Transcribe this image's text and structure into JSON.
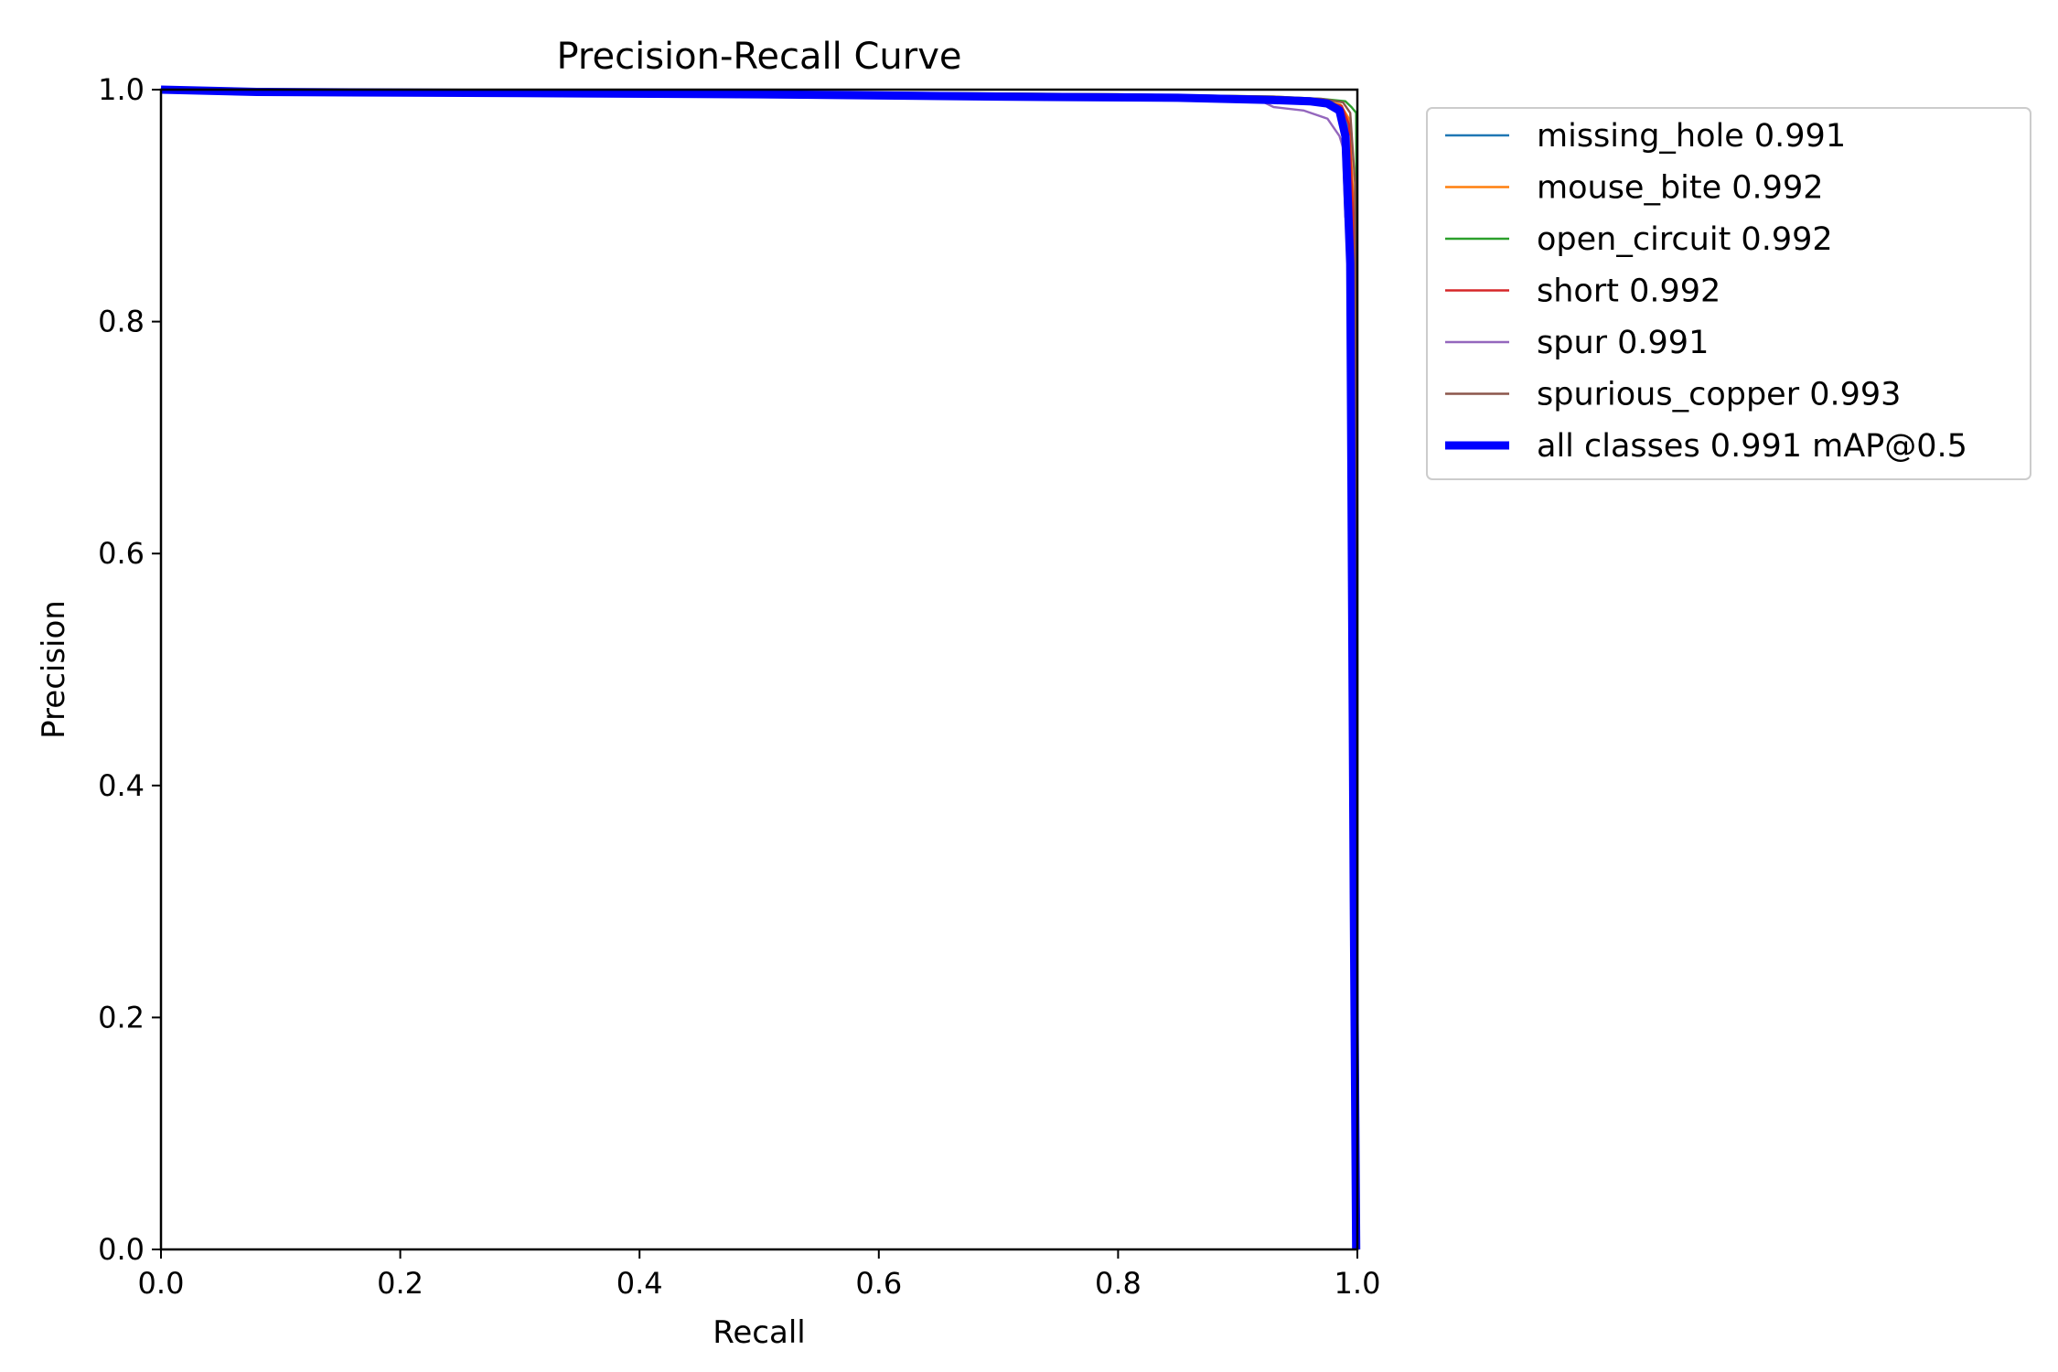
{
  "chart_data": {
    "type": "line",
    "title": "Precision-Recall Curve",
    "xlabel": "Recall",
    "ylabel": "Precision",
    "xlim": [
      0.0,
      1.0
    ],
    "ylim": [
      0.0,
      1.0
    ],
    "xticks": [
      "0.0",
      "0.2",
      "0.4",
      "0.6",
      "0.8",
      "1.0"
    ],
    "yticks": [
      "0.0",
      "0.2",
      "0.4",
      "0.6",
      "0.8",
      "1.0"
    ],
    "grid": false,
    "legend_position": "outside-upper-right",
    "series": [
      {
        "name": "missing_hole 0.991",
        "color": "#1f77b4",
        "x": [
          0.0,
          0.2,
          0.5,
          0.8,
          0.93,
          0.97,
          0.985,
          0.992,
          0.996,
          0.998,
          0.999
        ],
        "y": [
          1.0,
          0.999,
          0.997,
          0.994,
          0.992,
          0.99,
          0.985,
          0.97,
          0.9,
          0.5,
          0.0
        ]
      },
      {
        "name": "mouse_bite 0.992",
        "color": "#ff7f0e",
        "x": [
          0.0,
          0.2,
          0.5,
          0.8,
          0.93,
          0.97,
          0.986,
          0.993,
          0.997,
          0.999,
          1.0
        ],
        "y": [
          1.0,
          0.999,
          0.997,
          0.995,
          0.993,
          0.991,
          0.987,
          0.975,
          0.9,
          0.4,
          0.0
        ]
      },
      {
        "name": "open_circuit 0.992",
        "color": "#2ca02c",
        "x": [
          0.0,
          0.2,
          0.5,
          0.8,
          0.93,
          0.97,
          0.99,
          0.995,
          0.999,
          1.0,
          1.0
        ],
        "y": [
          1.0,
          0.999,
          0.998,
          0.996,
          0.994,
          0.992,
          0.99,
          0.985,
          0.98,
          0.6,
          0.0
        ]
      },
      {
        "name": "short 0.992",
        "color": "#d62728",
        "x": [
          0.0,
          0.2,
          0.5,
          0.8,
          0.93,
          0.97,
          0.987,
          0.993,
          0.997,
          0.999,
          1.0
        ],
        "y": [
          1.0,
          0.999,
          0.997,
          0.995,
          0.993,
          0.99,
          0.986,
          0.97,
          0.88,
          0.35,
          0.0
        ]
      },
      {
        "name": "spur 0.991",
        "color": "#9467bd",
        "x": [
          0.0,
          0.2,
          0.5,
          0.8,
          0.92,
          0.93,
          0.955,
          0.975,
          0.985,
          0.988,
          0.99,
          0.993,
          0.996,
          0.998
        ],
        "y": [
          1.0,
          0.999,
          0.997,
          0.993,
          0.99,
          0.985,
          0.982,
          0.975,
          0.96,
          0.95,
          0.89,
          0.96,
          0.6,
          0.0
        ]
      },
      {
        "name": "spurious_copper 0.993",
        "color": "#8c564b",
        "x": [
          0.0,
          0.2,
          0.5,
          0.8,
          0.93,
          0.97,
          0.988,
          0.994,
          0.998,
          1.0,
          1.0
        ],
        "y": [
          1.0,
          0.999,
          0.998,
          0.996,
          0.994,
          0.992,
          0.989,
          0.98,
          0.92,
          0.5,
          0.0
        ]
      },
      {
        "name": "all classes 0.991 mAP@0.5",
        "color": "#0000ff",
        "x": [
          0.0,
          0.08,
          0.3,
          0.5,
          0.7,
          0.85,
          0.93,
          0.96,
          0.975,
          0.985,
          0.99,
          0.994,
          0.997,
          0.999
        ],
        "y": [
          1.0,
          0.998,
          0.997,
          0.996,
          0.994,
          0.993,
          0.991,
          0.99,
          0.988,
          0.982,
          0.96,
          0.85,
          0.3,
          0.0
        ]
      }
    ]
  }
}
